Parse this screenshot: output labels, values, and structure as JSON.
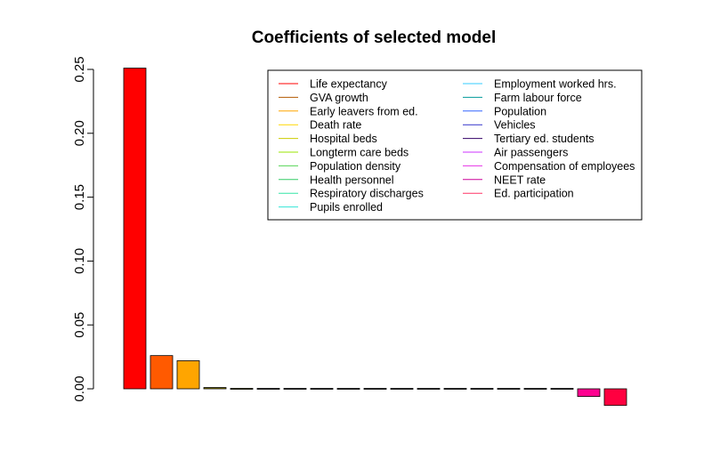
{
  "chart_data": {
    "type": "bar",
    "title": "Coefficients of selected model",
    "xlabel": "",
    "ylabel": "",
    "ylim": [
      -0.015,
      0.25
    ],
    "yticks": [
      "0.00",
      "0.05",
      "0.10",
      "0.15",
      "0.20",
      "0.25"
    ],
    "ytick_values": [
      0,
      0.05,
      0.1,
      0.15,
      0.2,
      0.25
    ],
    "grid": false,
    "legend_placement": "top-right",
    "categories": [
      "Life expectancy",
      "GVA growth",
      "Early leavers from ed.",
      "Death rate",
      "Hospital beds",
      "Longterm care beds",
      "Population density",
      "Health personnel",
      "Respiratory discharges",
      "Pupils enrolled",
      "Employment worked hrs.",
      "Farm labour force",
      "Population",
      "Vehicles",
      "Tertiary ed. students",
      "Air passengers",
      "Compensation of employees",
      "NEET rate",
      "Ed. participation"
    ],
    "values": [
      0.251,
      0.026,
      0.022,
      0.001,
      0.0005,
      0,
      0,
      0,
      0,
      0,
      0,
      0,
      0,
      0,
      0,
      0,
      0,
      -0.006,
      -0.013
    ],
    "colors": [
      "#FF0000",
      "#FF5A00",
      "#FFA500",
      "#8A7F00",
      "#6E6E00",
      "#555555",
      "#555555",
      "#555555",
      "#555555",
      "#555555",
      "#555555",
      "#555555",
      "#555555",
      "#555555",
      "#555555",
      "#555555",
      "#555555",
      "#FF0090",
      "#FF0040"
    ],
    "legend_colors": [
      "#FF0000",
      "#B35900",
      "#FFA500",
      "#FFD700",
      "#CCCC00",
      "#99E600",
      "#55D455",
      "#33CC66",
      "#33E6A6",
      "#33E6D6",
      "#33CCFF",
      "#009999",
      "#3366FF",
      "#3333CC",
      "#330066",
      "#CC33FF",
      "#E633E6",
      "#CC0099",
      "#FF3366"
    ]
  }
}
